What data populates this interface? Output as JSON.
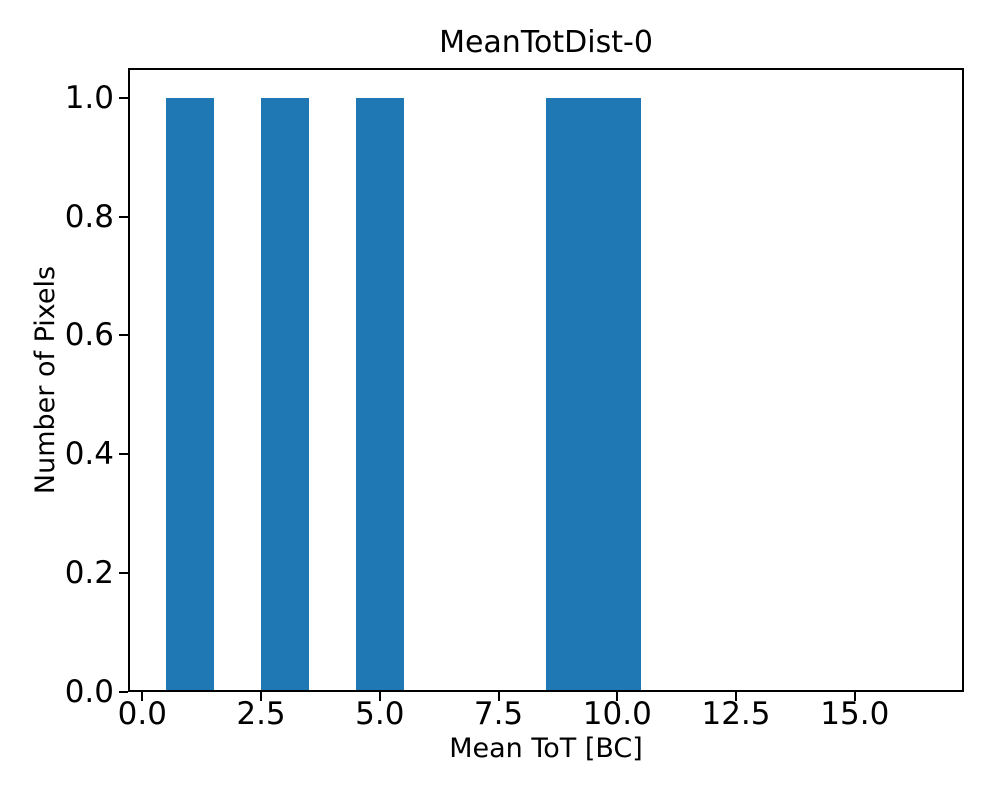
{
  "figure": {
    "background": "#ffffff",
    "axis_color": "#000000"
  },
  "chart_data": {
    "type": "bar",
    "subtype": "histogram",
    "title": "MeanTotDist-0",
    "xlabel": "Mean ToT [BC]",
    "ylabel": "Number of Pixels",
    "xlim": [
      -0.3,
      17.3
    ],
    "ylim": [
      0,
      1.05
    ],
    "xticks": {
      "values": [
        0,
        2.5,
        5,
        7.5,
        10,
        12.5,
        15
      ],
      "labels": [
        "0.0",
        "2.5",
        "5.0",
        "7.5",
        "10.0",
        "12.5",
        "15.0"
      ]
    },
    "yticks": {
      "values": [
        0,
        0.2,
        0.4,
        0.6,
        0.8,
        1.0
      ],
      "labels": [
        "0.0",
        "0.2",
        "0.4",
        "0.6",
        "0.8",
        "1.0"
      ]
    },
    "bin_width": 1,
    "bars": [
      {
        "x_start": 0.5,
        "x_end": 1.5,
        "value": 1
      },
      {
        "x_start": 2.5,
        "x_end": 3.5,
        "value": 1
      },
      {
        "x_start": 4.5,
        "x_end": 5.5,
        "value": 1
      },
      {
        "x_start": 8.5,
        "x_end": 9.5,
        "value": 1
      },
      {
        "x_start": 9.5,
        "x_end": 10.5,
        "value": 1
      }
    ],
    "bar_color": "#1f77b4",
    "grid": false
  }
}
